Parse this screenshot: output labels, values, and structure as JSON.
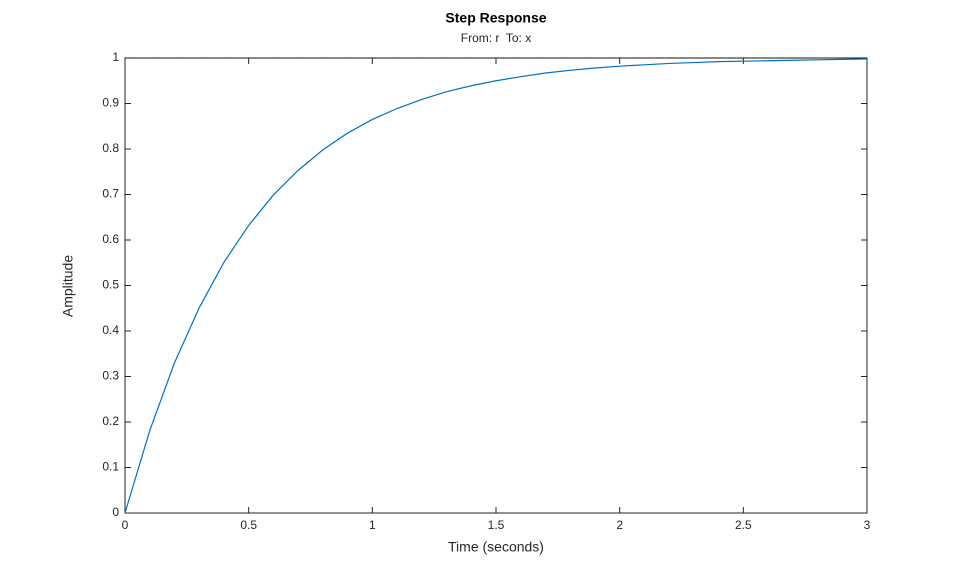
{
  "chart_data": {
    "type": "line",
    "title": "Step Response",
    "subtitle": "From: r  To: x",
    "x_label": "Time (seconds)",
    "y_label": "Amplitude",
    "x": [
      0,
      0.1,
      0.2,
      0.3,
      0.4,
      0.5,
      0.6,
      0.7,
      0.8,
      0.9,
      1.0,
      1.1,
      1.2,
      1.3,
      1.4,
      1.5,
      1.6,
      1.7,
      1.8,
      1.9,
      2.0,
      2.1,
      2.2,
      2.3,
      2.4,
      2.5,
      2.6,
      2.7,
      2.8,
      2.9,
      3.0
    ],
    "values": [
      0,
      0.181,
      0.33,
      0.451,
      0.551,
      0.632,
      0.699,
      0.753,
      0.798,
      0.835,
      0.865,
      0.889,
      0.909,
      0.926,
      0.939,
      0.95,
      0.959,
      0.967,
      0.973,
      0.978,
      0.982,
      0.985,
      0.988,
      0.99,
      0.992,
      0.993,
      0.994,
      0.995,
      0.996,
      0.997,
      0.998
    ],
    "color": "#0072bd",
    "reference_line": 1,
    "xlim": [
      0,
      3
    ],
    "xticks": [
      0,
      0.5,
      1,
      1.5,
      2,
      2.5,
      3
    ],
    "ylim": [
      0,
      1
    ],
    "yticks": [
      0,
      0.1,
      0.2,
      0.3,
      0.4,
      0.5,
      0.6,
      0.7,
      0.8,
      0.9,
      1
    ],
    "grid": false
  }
}
